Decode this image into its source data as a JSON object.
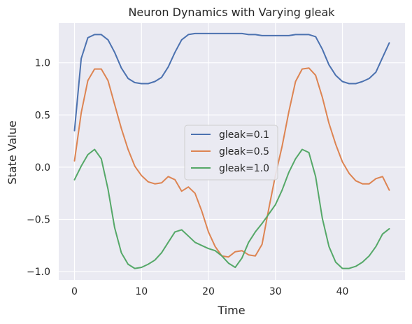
{
  "chart_data": {
    "type": "line",
    "title": "Neuron Dynamics with Varying gleak",
    "xlabel": "Time",
    "ylabel": "State Value",
    "xlim": [
      -2.35,
      49.35
    ],
    "ylim": [
      -1.08,
      1.38
    ],
    "xticks": [
      0,
      10,
      20,
      30,
      40
    ],
    "xtick_labels": [
      "0",
      "10",
      "20",
      "30",
      "40"
    ],
    "yticks": [
      -1.0,
      -0.5,
      0.0,
      0.5,
      1.0
    ],
    "ytick_labels": [
      "−1.0",
      "−0.5",
      "0.0",
      "0.5",
      "1.0"
    ],
    "grid": true,
    "legend_position": "center-right",
    "x": [
      0,
      1,
      2,
      3,
      4,
      5,
      6,
      7,
      8,
      9,
      10,
      11,
      12,
      13,
      14,
      15,
      16,
      17,
      18,
      19,
      20,
      21,
      22,
      23,
      24,
      25,
      26,
      27,
      28,
      29,
      30,
      31,
      32,
      33,
      34,
      35,
      36,
      37,
      38,
      39,
      40,
      41,
      42,
      43,
      44,
      45,
      46,
      47
    ],
    "series": [
      {
        "name": "gleak=0.1",
        "color": "#4c72b0",
        "values": [
          0.35,
          1.04,
          1.24,
          1.27,
          1.27,
          1.22,
          1.1,
          0.95,
          0.85,
          0.81,
          0.8,
          0.8,
          0.82,
          0.86,
          0.96,
          1.1,
          1.22,
          1.27,
          1.28,
          1.28,
          1.28,
          1.28,
          1.28,
          1.28,
          1.28,
          1.28,
          1.27,
          1.27,
          1.26,
          1.26,
          1.26,
          1.26,
          1.26,
          1.27,
          1.27,
          1.27,
          1.25,
          1.13,
          0.98,
          0.88,
          0.82,
          0.8,
          0.8,
          0.82,
          0.85,
          0.91,
          1.05,
          1.19
        ]
      },
      {
        "name": "gleak=0.5",
        "color": "#dd8452",
        "values": [
          0.06,
          0.52,
          0.83,
          0.94,
          0.94,
          0.83,
          0.6,
          0.37,
          0.17,
          0.01,
          -0.08,
          -0.14,
          -0.16,
          -0.15,
          -0.09,
          -0.12,
          -0.23,
          -0.19,
          -0.25,
          -0.42,
          -0.62,
          -0.76,
          -0.85,
          -0.86,
          -0.81,
          -0.8,
          -0.84,
          -0.85,
          -0.74,
          -0.4,
          -0.08,
          0.2,
          0.53,
          0.82,
          0.94,
          0.95,
          0.88,
          0.67,
          0.42,
          0.22,
          0.05,
          -0.06,
          -0.13,
          -0.16,
          -0.16,
          -0.11,
          -0.09,
          -0.22
        ]
      },
      {
        "name": "gleak=1.0",
        "color": "#55a868",
        "values": [
          -0.12,
          0.01,
          0.12,
          0.17,
          0.08,
          -0.21,
          -0.58,
          -0.82,
          -0.93,
          -0.97,
          -0.96,
          -0.93,
          -0.89,
          -0.82,
          -0.72,
          -0.62,
          -0.6,
          -0.66,
          -0.72,
          -0.75,
          -0.78,
          -0.8,
          -0.85,
          -0.92,
          -0.96,
          -0.87,
          -0.72,
          -0.62,
          -0.54,
          -0.45,
          -0.36,
          -0.22,
          -0.05,
          0.08,
          0.17,
          0.14,
          -0.09,
          -0.49,
          -0.76,
          -0.91,
          -0.97,
          -0.97,
          -0.95,
          -0.91,
          -0.85,
          -0.76,
          -0.64,
          -0.59
        ]
      }
    ]
  }
}
